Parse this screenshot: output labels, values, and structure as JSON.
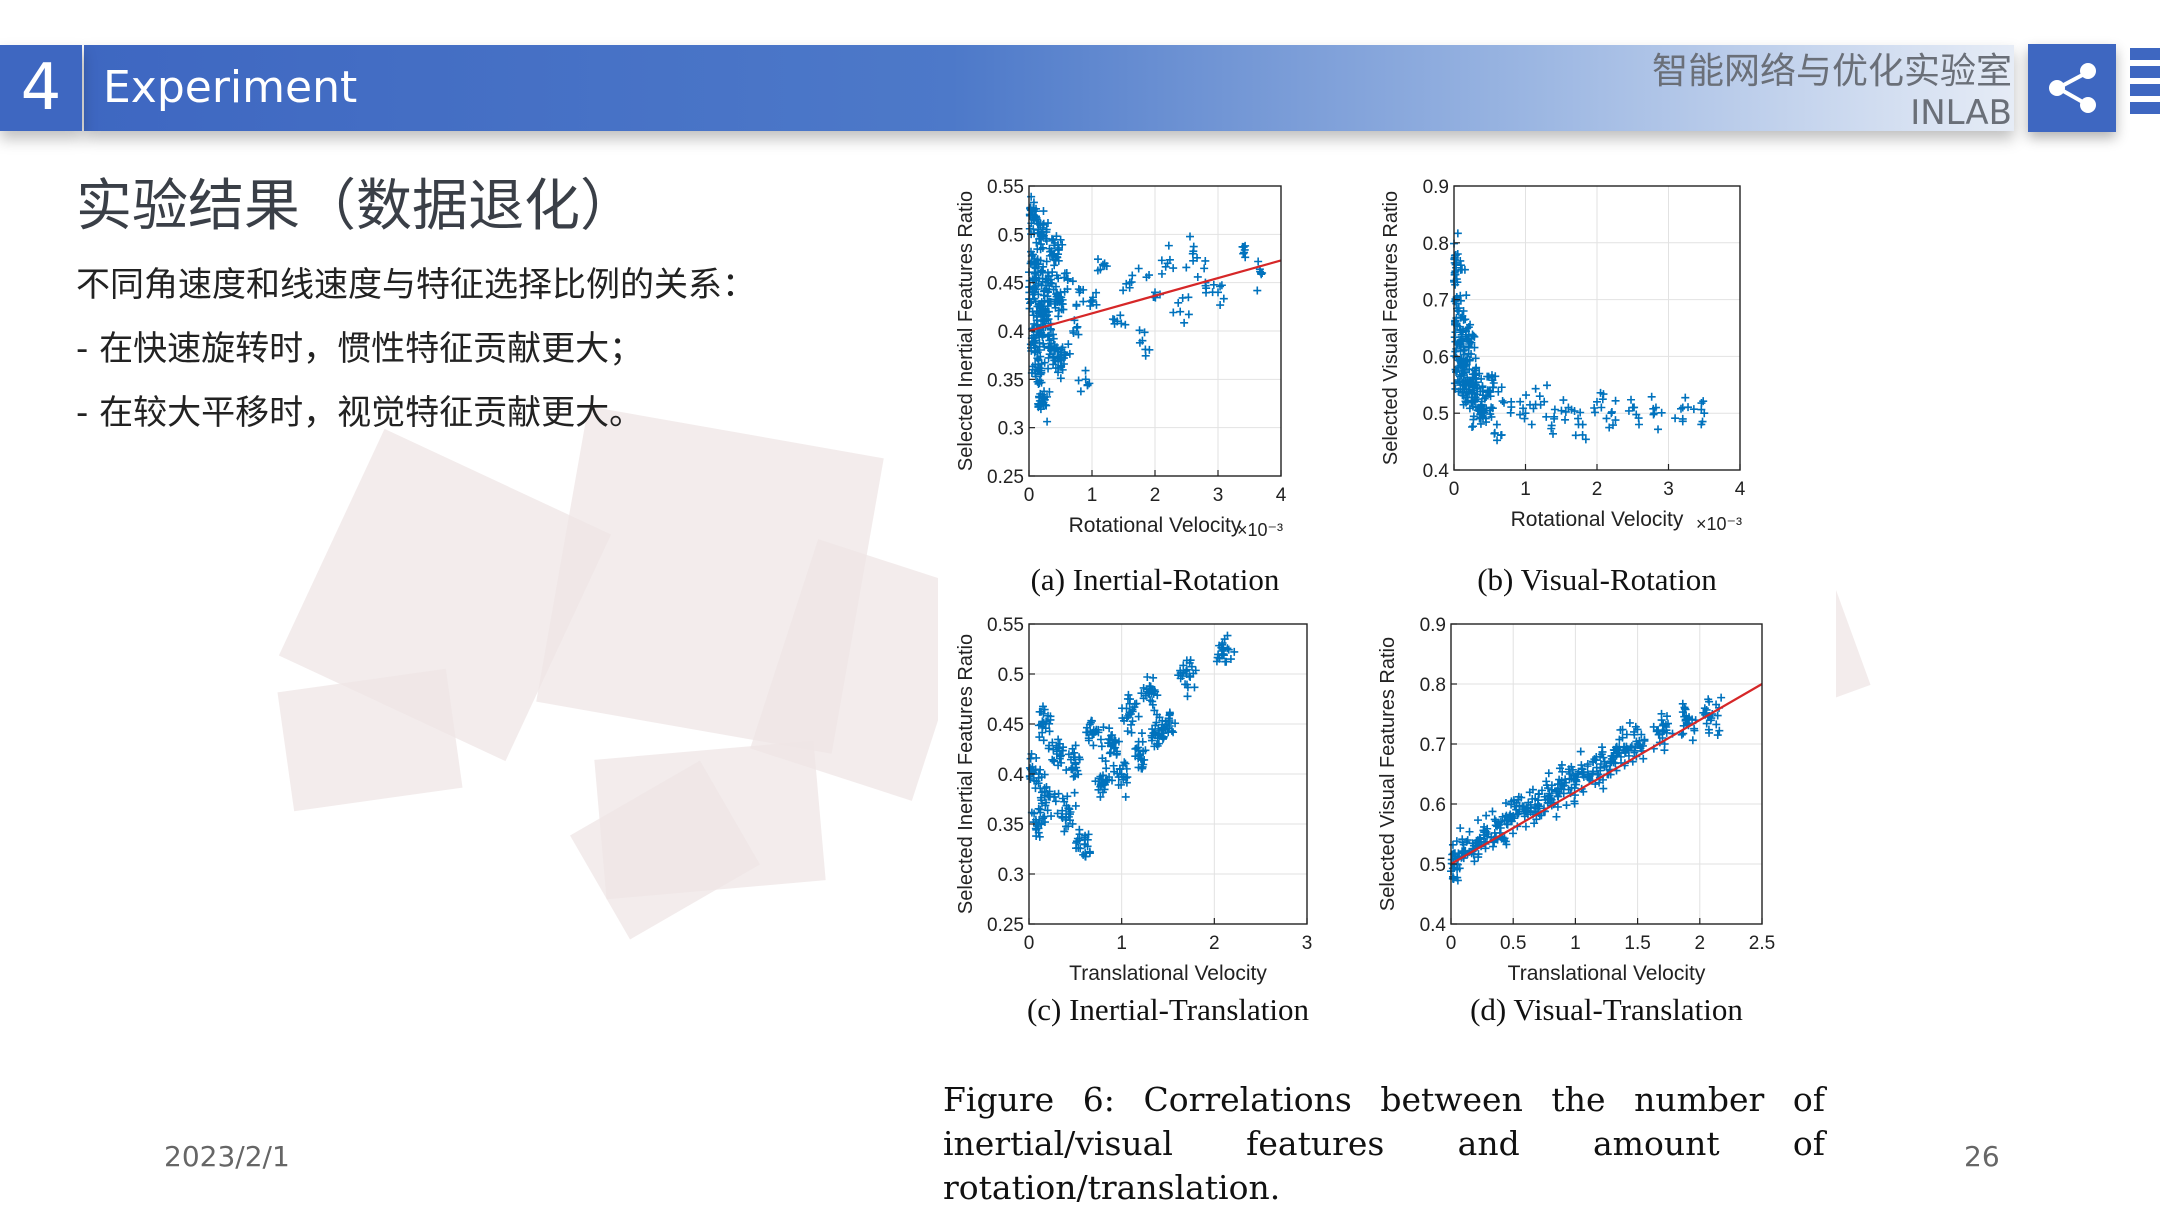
{
  "header": {
    "section_number": "4",
    "section_title": "Experiment",
    "lab_name_cn": "智能网络与优化实验室",
    "lab_name_en": "INLAB"
  },
  "icons": {
    "share": "share-icon",
    "menu": "menu-bars-icon"
  },
  "colors": {
    "accent": "#3e67c1",
    "points": "#0072bd",
    "fit_line": "#d62728"
  },
  "content": {
    "title": "实验结果（数据退化）",
    "lines": [
      "不同角速度和线速度与特征选择比例的关系：",
      "- 在快速旋转时，惯性特征贡献更大；",
      "- 在较大平移时，视觉特征贡献更大。"
    ]
  },
  "figure": {
    "caption": "Figure 6:   Correlations between the number of inertial/visual features and amount of rotation/translation."
  },
  "chart_data": [
    {
      "type": "scatter",
      "subtitle": "(a)  Inertial-Rotation",
      "xlabel": "Rotational Velocity",
      "x_multiplier": "×10⁻³",
      "ylabel": "Selected Inertial Features Ratio",
      "xlim": [
        0,
        4
      ],
      "ylim": [
        0.25,
        0.55
      ],
      "xticks": [
        "0",
        "1",
        "2",
        "3",
        "4"
      ],
      "yticks": [
        "0.25",
        "0.3",
        "0.35",
        "0.4",
        "0.45",
        "0.5",
        "0.55"
      ],
      "fit_line": {
        "x": [
          0,
          4
        ],
        "y": [
          0.4,
          0.473
        ]
      },
      "points": [
        [
          0.05,
          0.52
        ],
        [
          0.08,
          0.44
        ],
        [
          0.1,
          0.39
        ],
        [
          0.12,
          0.47
        ],
        [
          0.15,
          0.36
        ],
        [
          0.18,
          0.42
        ],
        [
          0.2,
          0.5
        ],
        [
          0.22,
          0.33
        ],
        [
          0.25,
          0.41
        ],
        [
          0.3,
          0.45
        ],
        [
          0.35,
          0.38
        ],
        [
          0.4,
          0.48
        ],
        [
          0.45,
          0.43
        ],
        [
          0.5,
          0.37
        ],
        [
          0.6,
          0.46
        ],
        [
          0.7,
          0.4
        ],
        [
          0.8,
          0.44
        ],
        [
          0.9,
          0.35
        ],
        [
          1.0,
          0.43
        ],
        [
          1.2,
          0.47
        ],
        [
          1.4,
          0.41
        ],
        [
          1.6,
          0.45
        ],
        [
          1.8,
          0.39
        ],
        [
          2.0,
          0.44
        ],
        [
          2.2,
          0.47
        ],
        [
          2.4,
          0.42
        ],
        [
          2.6,
          0.48
        ],
        [
          2.8,
          0.45
        ],
        [
          3.0,
          0.44
        ],
        [
          3.4,
          0.48
        ],
        [
          3.7,
          0.46
        ]
      ],
      "grid": true
    },
    {
      "type": "scatter",
      "subtitle": "(b)  Visual-Rotation",
      "xlabel": "Rotational Velocity",
      "x_multiplier": "×10⁻³",
      "ylabel": "Selected Visual Features Ratio",
      "xlim": [
        0,
        4
      ],
      "ylim": [
        0.4,
        0.9
      ],
      "xticks": [
        "0",
        "1",
        "2",
        "3",
        "4"
      ],
      "yticks": [
        "0.4",
        "0.5",
        "0.6",
        "0.7",
        "0.8",
        "0.9"
      ],
      "points": [
        [
          0.02,
          0.75
        ],
        [
          0.05,
          0.68
        ],
        [
          0.08,
          0.62
        ],
        [
          0.1,
          0.58
        ],
        [
          0.15,
          0.55
        ],
        [
          0.2,
          0.63
        ],
        [
          0.25,
          0.52
        ],
        [
          0.3,
          0.56
        ],
        [
          0.4,
          0.5
        ],
        [
          0.5,
          0.54
        ],
        [
          0.6,
          0.48
        ],
        [
          0.8,
          0.52
        ],
        [
          1.0,
          0.5
        ],
        [
          1.2,
          0.53
        ],
        [
          1.4,
          0.49
        ],
        [
          1.6,
          0.51
        ],
        [
          1.8,
          0.48
        ],
        [
          2.0,
          0.52
        ],
        [
          2.2,
          0.5
        ],
        [
          2.5,
          0.51
        ],
        [
          2.8,
          0.5
        ],
        [
          3.2,
          0.51
        ],
        [
          3.5,
          0.5
        ]
      ],
      "grid": true
    },
    {
      "type": "scatter",
      "subtitle": "(c)  Inertial-Translation",
      "xlabel": "Translational Velocity",
      "ylabel": "Selected Inertial Features Ratio",
      "xlim": [
        0,
        3
      ],
      "ylim": [
        0.25,
        0.55
      ],
      "xticks": [
        "0",
        "1",
        "2",
        "3"
      ],
      "yticks": [
        "0.25",
        "0.3",
        "0.35",
        "0.4",
        "0.45",
        "0.5",
        "0.55"
      ],
      "points": [
        [
          0.05,
          0.4
        ],
        [
          0.1,
          0.35
        ],
        [
          0.15,
          0.45
        ],
        [
          0.2,
          0.38
        ],
        [
          0.3,
          0.42
        ],
        [
          0.4,
          0.36
        ],
        [
          0.5,
          0.41
        ],
        [
          0.6,
          0.33
        ],
        [
          0.7,
          0.44
        ],
        [
          0.8,
          0.39
        ],
        [
          0.9,
          0.43
        ],
        [
          1.0,
          0.4
        ],
        [
          1.1,
          0.46
        ],
        [
          1.2,
          0.42
        ],
        [
          1.3,
          0.48
        ],
        [
          1.4,
          0.44
        ],
        [
          1.5,
          0.45
        ],
        [
          1.7,
          0.5
        ],
        [
          2.1,
          0.52
        ]
      ],
      "grid": true
    },
    {
      "type": "scatter",
      "subtitle": "(d)  Visual-Translation",
      "xlabel": "Translational Velocity",
      "ylabel": "Selected Visual Features Ratio",
      "xlim": [
        0,
        2.5
      ],
      "ylim": [
        0.4,
        0.9
      ],
      "xticks": [
        "0",
        "0.5",
        "1",
        "1.5",
        "2",
        "2.5"
      ],
      "yticks": [
        "0.4",
        "0.5",
        "0.6",
        "0.7",
        "0.8",
        "0.9"
      ],
      "fit_line": {
        "x": [
          0,
          2.5
        ],
        "y": [
          0.5,
          0.8
        ]
      },
      "points": [
        [
          0.02,
          0.5
        ],
        [
          0.1,
          0.52
        ],
        [
          0.2,
          0.53
        ],
        [
          0.3,
          0.55
        ],
        [
          0.4,
          0.56
        ],
        [
          0.5,
          0.58
        ],
        [
          0.6,
          0.59
        ],
        [
          0.7,
          0.6
        ],
        [
          0.8,
          0.61
        ],
        [
          0.9,
          0.63
        ],
        [
          1.0,
          0.64
        ],
        [
          1.1,
          0.65
        ],
        [
          1.2,
          0.66
        ],
        [
          1.3,
          0.68
        ],
        [
          1.4,
          0.69
        ],
        [
          1.5,
          0.7
        ],
        [
          1.7,
          0.72
        ],
        [
          1.9,
          0.74
        ],
        [
          2.1,
          0.75
        ]
      ],
      "grid": true
    }
  ],
  "footer": {
    "date": "2023/2/1",
    "page_number": "26"
  }
}
